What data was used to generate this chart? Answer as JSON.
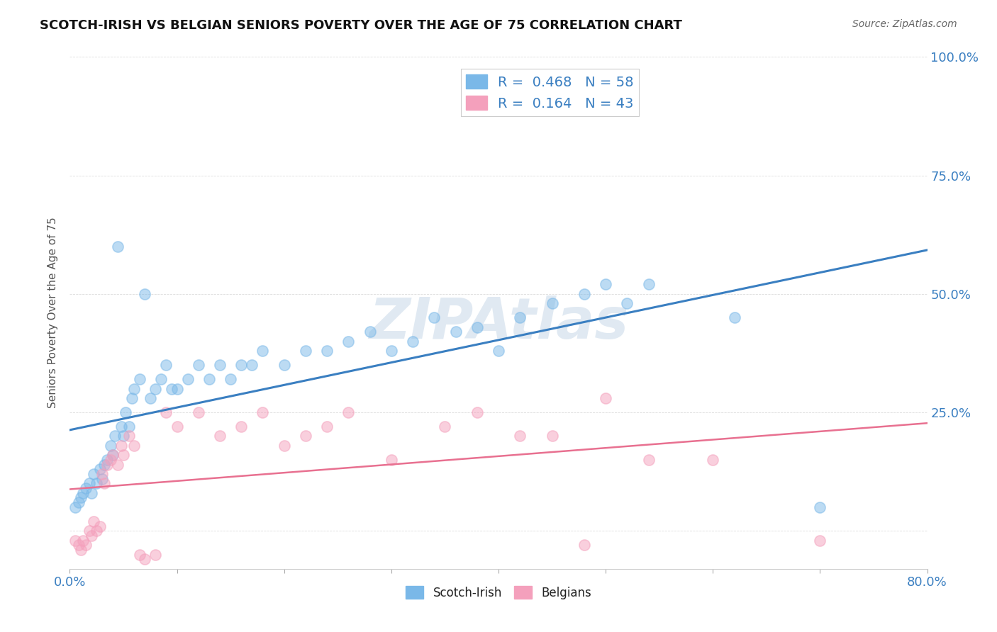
{
  "title": "SCOTCH-IRISH VS BELGIAN SENIORS POVERTY OVER THE AGE OF 75 CORRELATION CHART",
  "source": "Source: ZipAtlas.com",
  "ylabel": "Seniors Poverty Over the Age of 75",
  "xlim": [
    0.0,
    0.8
  ],
  "ylim": [
    -0.08,
    1.0
  ],
  "xticks": [
    0.0,
    0.1,
    0.2,
    0.3,
    0.4,
    0.5,
    0.6,
    0.7,
    0.8
  ],
  "xticklabels": [
    "0.0%",
    "",
    "",
    "",
    "",
    "",
    "",
    "",
    "80.0%"
  ],
  "yticks_right": [
    0.0,
    0.25,
    0.5,
    0.75,
    1.0
  ],
  "ytick_right_labels": [
    "",
    "25.0%",
    "50.0%",
    "75.0%",
    "100.0%"
  ],
  "scotch_irish_color": "#7ab8e8",
  "belgians_color": "#f4a0bc",
  "scotch_irish_line_color": "#3a7fc1",
  "belgians_line_color": "#e87090",
  "scotch_irish_R": 0.468,
  "scotch_irish_N": 58,
  "belgians_R": 0.164,
  "belgians_N": 43,
  "watermark": "ZIPAtlas",
  "background_color": "#ffffff",
  "grid_color": "#cccccc",
  "scotch_irish_x": [
    0.005,
    0.008,
    0.01,
    0.012,
    0.015,
    0.018,
    0.02,
    0.022,
    0.025,
    0.028,
    0.03,
    0.032,
    0.035,
    0.038,
    0.04,
    0.042,
    0.045,
    0.048,
    0.05,
    0.052,
    0.055,
    0.058,
    0.06,
    0.065,
    0.07,
    0.075,
    0.08,
    0.085,
    0.09,
    0.095,
    0.1,
    0.11,
    0.12,
    0.13,
    0.14,
    0.15,
    0.16,
    0.17,
    0.18,
    0.2,
    0.22,
    0.24,
    0.26,
    0.28,
    0.3,
    0.32,
    0.34,
    0.36,
    0.38,
    0.4,
    0.42,
    0.45,
    0.48,
    0.5,
    0.52,
    0.54,
    0.62,
    0.7
  ],
  "scotch_irish_y": [
    0.05,
    0.06,
    0.07,
    0.08,
    0.09,
    0.1,
    0.08,
    0.12,
    0.1,
    0.13,
    0.11,
    0.14,
    0.15,
    0.18,
    0.16,
    0.2,
    0.6,
    0.22,
    0.2,
    0.25,
    0.22,
    0.28,
    0.3,
    0.32,
    0.5,
    0.28,
    0.3,
    0.32,
    0.35,
    0.3,
    0.3,
    0.32,
    0.35,
    0.32,
    0.35,
    0.32,
    0.35,
    0.35,
    0.38,
    0.35,
    0.38,
    0.38,
    0.4,
    0.42,
    0.38,
    0.4,
    0.45,
    0.42,
    0.43,
    0.38,
    0.45,
    0.48,
    0.5,
    0.52,
    0.48,
    0.52,
    0.45,
    0.05
  ],
  "belgians_x": [
    0.005,
    0.008,
    0.01,
    0.012,
    0.015,
    0.018,
    0.02,
    0.022,
    0.025,
    0.028,
    0.03,
    0.032,
    0.035,
    0.038,
    0.04,
    0.045,
    0.048,
    0.05,
    0.055,
    0.06,
    0.065,
    0.07,
    0.08,
    0.09,
    0.1,
    0.12,
    0.14,
    0.16,
    0.18,
    0.2,
    0.22,
    0.24,
    0.26,
    0.3,
    0.35,
    0.38,
    0.42,
    0.45,
    0.48,
    0.5,
    0.54,
    0.6,
    0.7
  ],
  "belgians_y": [
    -0.02,
    -0.03,
    -0.04,
    -0.02,
    -0.03,
    0.0,
    -0.01,
    0.02,
    0.0,
    0.01,
    0.12,
    0.1,
    0.14,
    0.15,
    0.16,
    0.14,
    0.18,
    0.16,
    0.2,
    0.18,
    -0.05,
    -0.06,
    -0.05,
    0.25,
    0.22,
    0.25,
    0.2,
    0.22,
    0.25,
    0.18,
    0.2,
    0.22,
    0.25,
    0.15,
    0.22,
    0.25,
    0.2,
    0.2,
    -0.03,
    0.28,
    0.15,
    0.15,
    -0.02
  ]
}
